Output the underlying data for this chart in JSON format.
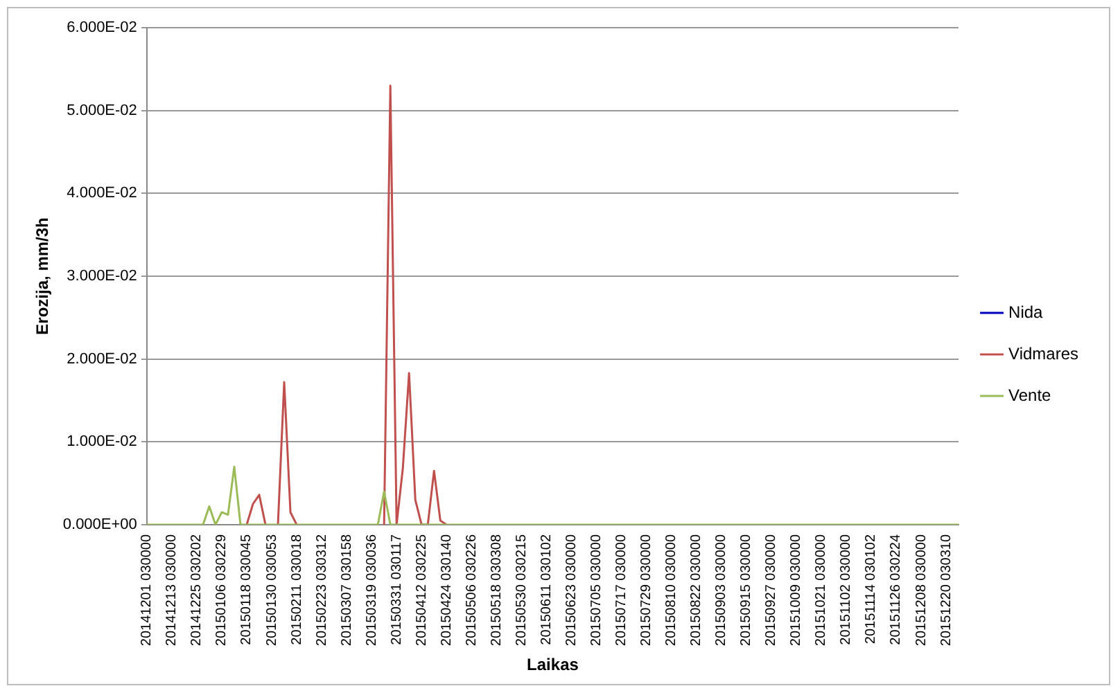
{
  "chart_data": {
    "type": "line",
    "xlabel": "Laikas",
    "ylabel": "Erozija, mm/3h",
    "categories": [
      "20141201 030000",
      null,
      null,
      null,
      "20141213 030000",
      null,
      null,
      null,
      "20141225 030202",
      null,
      null,
      null,
      "20150106 030229",
      null,
      null,
      null,
      "20150118 030045",
      null,
      null,
      null,
      "20150130 030053",
      null,
      null,
      null,
      "20150211 030018",
      null,
      null,
      null,
      "20150223 030312",
      null,
      null,
      null,
      "20150307 030158",
      null,
      null,
      null,
      "20150319 030036",
      null,
      null,
      null,
      "20150331 030117",
      null,
      null,
      null,
      "20150412 030225",
      null,
      null,
      null,
      "20150424 030140",
      null,
      null,
      null,
      "20150506 030226",
      null,
      null,
      null,
      "20150518 030308",
      null,
      null,
      null,
      "20150530 030215",
      null,
      null,
      null,
      "20150611 030102",
      null,
      null,
      null,
      "20150623 030000",
      null,
      null,
      null,
      "20150705 030000",
      null,
      null,
      null,
      "20150717 030000",
      null,
      null,
      null,
      "20150729 030000",
      null,
      null,
      null,
      "20150810 030000",
      null,
      null,
      null,
      "20150822 030000",
      null,
      null,
      null,
      "20150903 030000",
      null,
      null,
      null,
      "20150915 030000",
      null,
      null,
      null,
      "20150927 030000",
      null,
      null,
      null,
      "20151009 030000",
      null,
      null,
      null,
      "20151021 030000",
      null,
      null,
      null,
      "20151102 030000",
      null,
      null,
      null,
      "20151114 030102",
      null,
      null,
      null,
      "20151126 030224",
      null,
      null,
      null,
      "20151208 030000",
      null,
      null,
      null,
      "20151220 030310",
      null,
      null
    ],
    "series": [
      {
        "name": "Nida",
        "color": "#0000c0",
        "values": [
          null,
          null,
          null,
          null,
          null,
          null,
          null,
          null,
          null,
          null,
          null,
          null,
          null,
          null,
          null,
          null,
          null,
          null,
          null,
          null,
          null,
          null,
          null,
          null,
          null,
          null,
          null,
          null,
          null,
          null,
          null,
          null,
          null,
          null,
          null,
          null,
          null,
          null,
          null,
          null,
          null,
          null,
          null,
          null,
          null,
          null,
          null,
          null,
          null,
          null,
          null,
          null,
          null,
          null,
          null,
          null,
          null,
          null,
          null,
          null,
          null,
          null,
          null,
          null,
          null,
          null,
          null,
          null,
          null,
          null,
          null,
          null,
          null,
          null,
          null,
          null,
          null,
          null,
          null,
          null,
          null,
          null,
          null,
          null,
          null,
          null,
          null,
          null,
          null,
          null,
          null,
          null,
          null,
          null,
          null,
          null,
          null,
          null,
          null,
          null,
          null,
          null,
          null,
          null,
          null,
          null,
          null,
          null,
          null,
          null,
          null,
          null,
          null,
          null,
          null,
          null,
          null,
          null,
          null,
          null,
          null,
          null,
          null,
          null,
          null,
          null,
          null,
          null,
          null,
          null,
          null
        ]
      },
      {
        "name": "Vidmares",
        "color": "#c0504d",
        "values": [
          null,
          null,
          null,
          null,
          null,
          null,
          null,
          null,
          null,
          null,
          null,
          null,
          null,
          null,
          null,
          null,
          0,
          0.0025,
          0.0036,
          0,
          null,
          0,
          0.0172,
          0.0015,
          0,
          null,
          null,
          null,
          null,
          null,
          null,
          null,
          null,
          null,
          null,
          null,
          null,
          null,
          0,
          0.053,
          0,
          0.0068,
          0.0183,
          0.003,
          0,
          0,
          0.0065,
          0.0005,
          0,
          null,
          null,
          null,
          null,
          null,
          null,
          null,
          null,
          null,
          null,
          null,
          null,
          null,
          null,
          null,
          null,
          null,
          null,
          null,
          null,
          null,
          null,
          null,
          null,
          null,
          null,
          null,
          null,
          null,
          null,
          null,
          null,
          null,
          null,
          null,
          null,
          null,
          null,
          null,
          null,
          null,
          null,
          null,
          null,
          null,
          null,
          null,
          null,
          null,
          null,
          null,
          null,
          null,
          null,
          null,
          null,
          null,
          null,
          null,
          null,
          null,
          null,
          null,
          null,
          null,
          null,
          null,
          null,
          null,
          null,
          null,
          null,
          null,
          null,
          null,
          null,
          null,
          null,
          null,
          null,
          null,
          null
        ]
      },
      {
        "name": "Vente",
        "color": "#9bbb59",
        "values": [
          0,
          0,
          0,
          0,
          0,
          0,
          0,
          0,
          0,
          0,
          0.0022,
          0,
          0.0015,
          0.0012,
          0.007,
          0,
          0,
          0,
          0,
          0,
          0,
          0,
          0,
          0,
          0,
          0,
          0,
          0,
          0,
          0,
          0,
          0,
          0,
          0,
          0,
          0,
          0,
          0,
          0.004,
          0,
          0,
          0,
          0,
          0,
          0,
          0,
          0,
          0,
          0,
          0,
          0,
          0,
          0,
          0,
          0,
          0,
          0,
          0,
          0,
          0,
          0,
          0,
          0,
          0,
          0,
          0,
          0,
          0,
          0,
          0,
          0,
          0,
          0,
          0,
          0,
          0,
          0,
          0,
          0,
          0,
          0,
          0,
          0,
          0,
          0,
          0,
          0,
          0,
          0,
          0,
          0,
          0,
          0,
          0,
          0,
          0,
          0,
          0,
          0,
          0,
          0,
          0,
          0,
          0,
          0,
          0,
          0,
          0,
          0,
          0,
          0,
          0,
          0,
          0,
          0,
          0,
          0,
          0,
          0,
          0,
          0,
          0,
          0,
          0,
          0,
          0,
          0,
          0,
          0,
          0,
          0
        ]
      }
    ],
    "ylim": [
      0,
      0.06
    ],
    "yticks": [
      {
        "value": 0,
        "label": "0.000E+00"
      },
      {
        "value": 0.01,
        "label": "1.000E-02"
      },
      {
        "value": 0.02,
        "label": "2.000E-02"
      },
      {
        "value": 0.03,
        "label": "3.000E-02"
      },
      {
        "value": 0.04,
        "label": "4.000E-02"
      },
      {
        "value": 0.05,
        "label": "5.000E-02"
      },
      {
        "value": 0.06,
        "label": "6.000E-02"
      }
    ],
    "grid": "y",
    "legend": "right"
  }
}
